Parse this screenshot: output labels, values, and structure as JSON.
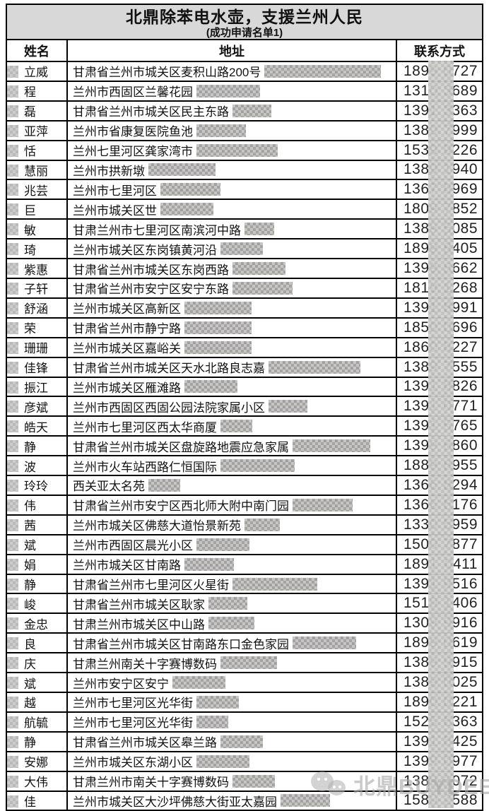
{
  "title": "北鼎除苯电水壶，支援兰州人民",
  "subtitle": "(成功申请名单1)",
  "columns": [
    "姓名",
    "地址",
    "联系方式"
  ],
  "watermark": {
    "text": "北鼎BUYDEEM",
    "icon": "wechat-logo-icon"
  },
  "redaction_note_colors": {
    "mosaic_base": "#cccccc",
    "title_band": "#d8d8d8"
  },
  "rows": [
    {
      "name": "立威",
      "address": "甘肃省兰州市城关区麦积山路200号",
      "blur": 165,
      "p1": "1899",
      "p2": "0727"
    },
    {
      "name": "程",
      "address": "兰州市西固区兰馨花园",
      "blur": 90,
      "p1": "1310",
      "p2": "3689"
    },
    {
      "name": "磊",
      "address": "甘肃省兰州市城关区民主东路",
      "blur": 55,
      "p1": "1391",
      "p2": "3363"
    },
    {
      "name": "亚萍",
      "address": "兰州市省康复医院鱼池",
      "blur": 70,
      "p1": "1389",
      "p2": "7999"
    },
    {
      "name": "恬",
      "address": "兰州七里河区龚家湾市",
      "blur": 115,
      "p1": "1539",
      "p2": "9226"
    },
    {
      "name": "慧丽",
      "address": "兰州市拱新墩",
      "blur": 95,
      "p1": "1389",
      "p2": "1940"
    },
    {
      "name": "兆芸",
      "address": "兰州市七里河区",
      "blur": 85,
      "p1": "1367",
      "p2": "8969"
    },
    {
      "name": "巨",
      "address": "兰州市城关区世",
      "blur": 75,
      "p1": "1809",
      "p2": "7852"
    },
    {
      "name": "敏",
      "address": "甘肃兰州市七里河区南滨河中路",
      "blur": 42,
      "p1": "1389",
      "p2": "5085"
    },
    {
      "name": "琦",
      "address": "兰州市城关区东岗镇黄河沿",
      "blur": 60,
      "p1": "1899",
      "p2": "8405"
    },
    {
      "name": "紫惠",
      "address": "甘肃省兰州市城关区东岗西路",
      "blur": 75,
      "p1": "1399",
      "p2": "8662"
    },
    {
      "name": "子轩",
      "address": "甘肃省兰州市安宁区安宁东路",
      "blur": 85,
      "p1": "1819",
      "p2": "1268"
    },
    {
      "name": "舒涵",
      "address": "兰州市城关区高新区",
      "blur": 95,
      "p1": "1391",
      "p2": "8991"
    },
    {
      "name": "荣",
      "address": "甘肃省兰州市静宁路",
      "blur": 95,
      "p1": "1850",
      "p2": "0696"
    },
    {
      "name": "珊珊",
      "address": "兰州市城关区嘉峪关",
      "blur": 95,
      "p1": "1860",
      "p2": "8227"
    },
    {
      "name": "佳锋",
      "address": "甘肃省兰州市城关区天水北路良志嘉",
      "blur": 130,
      "p1": "1389",
      "p2": "7555"
    },
    {
      "name": "振江",
      "address": "兰州市城关区雁滩路",
      "blur": 75,
      "p1": "1391",
      "p2": "8826"
    },
    {
      "name": "彦斌",
      "address": "兰州市西固区西固公园法院家属小区",
      "blur": 55,
      "p1": "1391",
      "p2": "0771"
    },
    {
      "name": "皓天",
      "address": "兰州市七里河区西太华商厦",
      "blur": 45,
      "p1": "1391",
      "p2": "5765"
    },
    {
      "name": "静",
      "address": "甘肃省兰州市城关区盘旋路地震应急家属",
      "blur": 110,
      "p1": "1399",
      "p2": "6860"
    },
    {
      "name": "波",
      "address": "兰州市火车站西路仁恒国际",
      "blur": 105,
      "p1": "1889",
      "p2": "8955"
    },
    {
      "name": "玲玲",
      "address": "西关亚太名苑",
      "blur": 45,
      "p1": "1366",
      "p2": "8294"
    },
    {
      "name": "伟",
      "address": "甘肃省兰州市安宁区西北师大附中南门园",
      "blur": 85,
      "p1": "1366",
      "p2": "6176"
    },
    {
      "name": "茜",
      "address": "兰州市城关区佛慈大道怡景新苑",
      "blur": 50,
      "p1": "1330",
      "p2": "5959"
    },
    {
      "name": "斌",
      "address": "兰州市西固区晨光小区",
      "blur": 75,
      "p1": "1500",
      "p2": "7877"
    },
    {
      "name": "娟",
      "address": "兰州市城关区甘南路",
      "blur": 70,
      "p1": "1891",
      "p2": "0411"
    },
    {
      "name": "静",
      "address": "甘肃省兰州市七里河区火星街",
      "blur": 120,
      "p1": "1391",
      "p2": "9516"
    },
    {
      "name": "峻",
      "address": "甘肃省兰州市城关区耿家",
      "blur": 55,
      "p1": "1510",
      "p2": "1406"
    },
    {
      "name": "金忠",
      "address": "甘肃兰州市城关区中山路",
      "blur": 65,
      "p1": "1309",
      "p2": "9916"
    },
    {
      "name": "良",
      "address": "甘肃省兰州市城关区甘南路东口金色家园",
      "blur": 90,
      "p1": "1899",
      "p2": "0619"
    },
    {
      "name": "庆",
      "address": "甘肃兰州南关十字赛博数码",
      "blur": 80,
      "p1": "1389",
      "p2": "9915"
    },
    {
      "name": "斌",
      "address": "兰州市安宁区安宁",
      "blur": 75,
      "p1": "1389",
      "p2": "0025"
    },
    {
      "name": "越",
      "address": "兰州市七里河区光华街",
      "blur": 60,
      "p1": "1890",
      "p2": "0221"
    },
    {
      "name": "航毓",
      "address": "兰州市七里河区光华街",
      "blur": 45,
      "p1": "1525",
      "p2": "6363"
    },
    {
      "name": "静",
      "address": "甘肃省兰州市城关区皋兰路",
      "blur": 60,
      "p1": "1391",
      "p2": "8425"
    },
    {
      "name": "安娜",
      "address": "兰州市城关区东湖小区",
      "blur": 75,
      "p1": "1399",
      "p2": "0977"
    },
    {
      "name": "大伟",
      "address": "甘肃兰州市南关十字赛博数码",
      "blur": 60,
      "p1": "1389",
      "p2": "1072"
    },
    {
      "name": "佳",
      "address": "兰州市城关区大沙坪佛慈大街亚太嘉园",
      "blur": 70,
      "p1": "1580",
      "p2": "2588"
    }
  ]
}
